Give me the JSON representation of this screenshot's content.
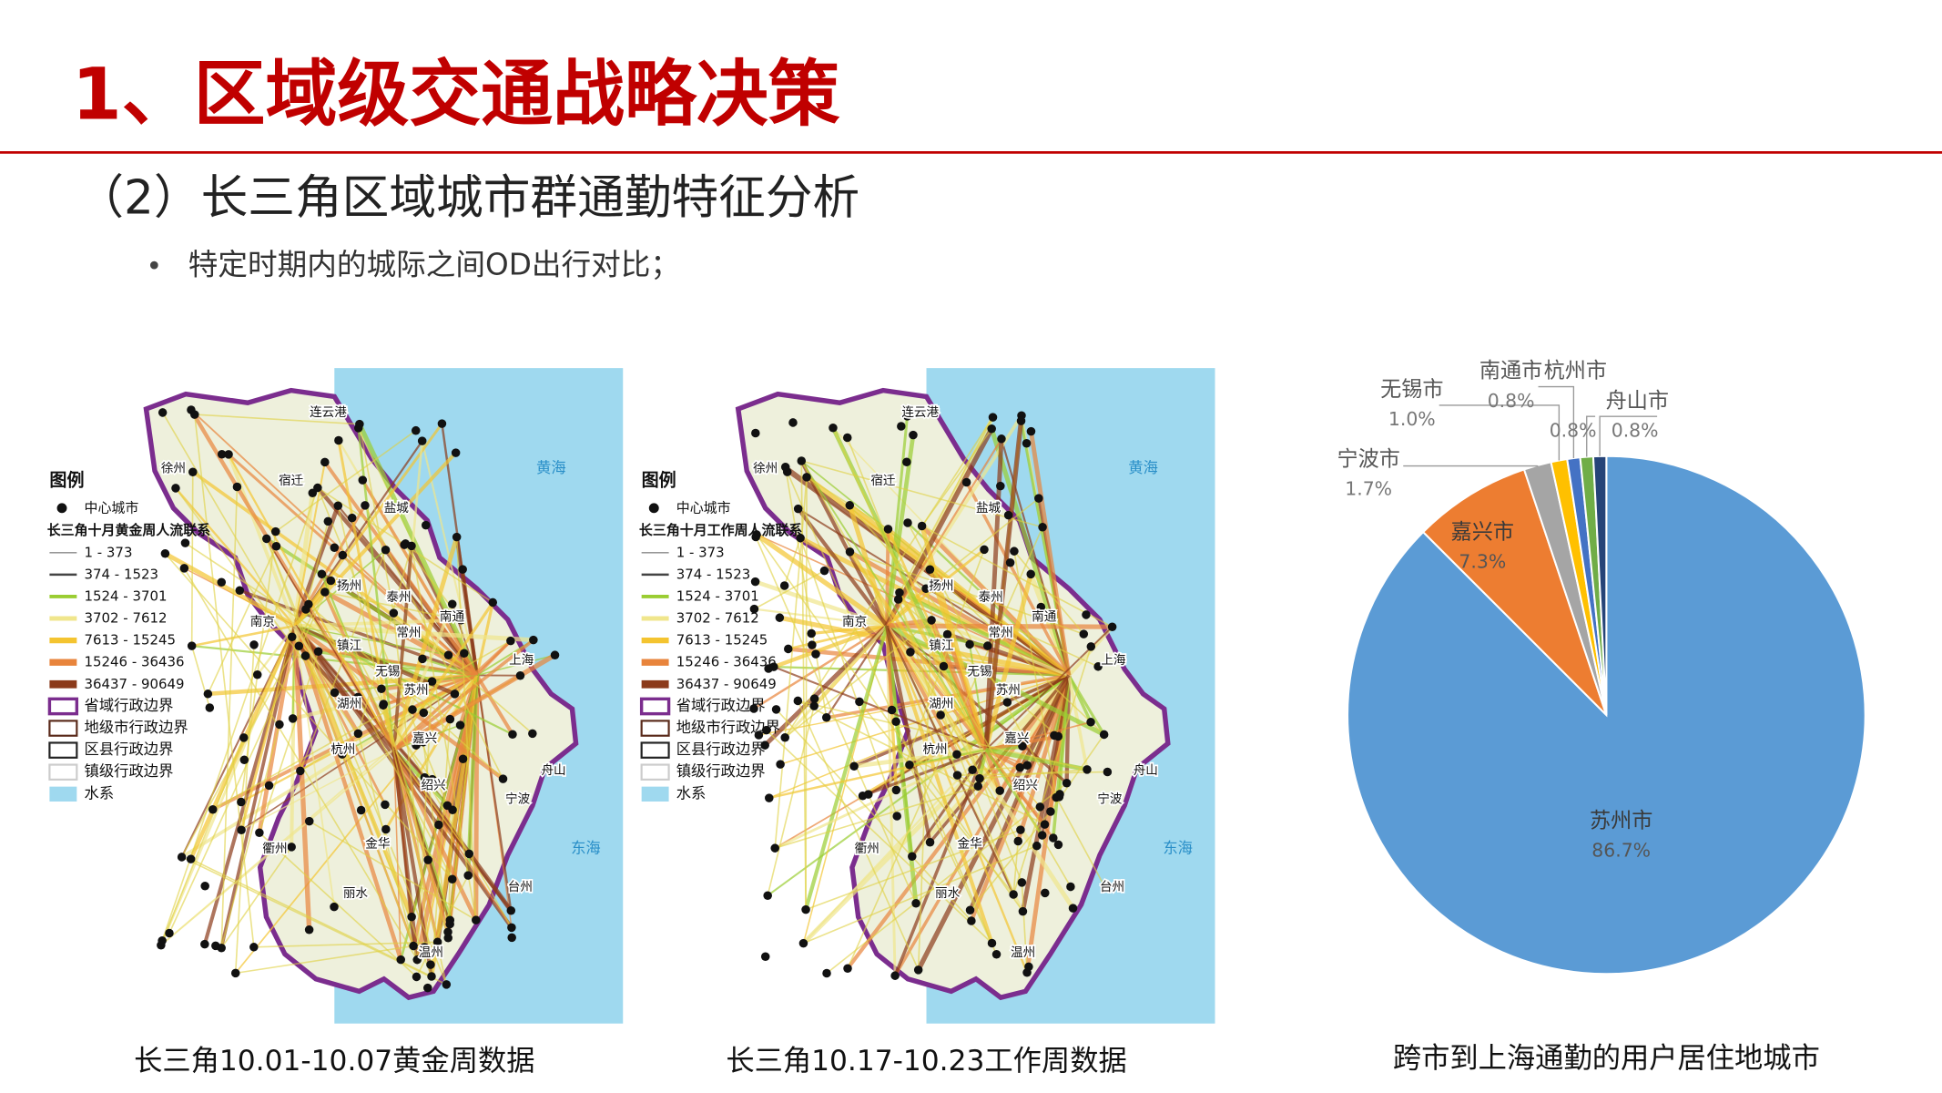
{
  "header": {
    "title": "1、区域级交通战略决策",
    "subtitle": "（2）长三角区域城市群通勤特征分析",
    "bullet": "特定时期内的城际之间OD出行对比；"
  },
  "maps": [
    {
      "legend_title": "图例",
      "center_city": "中心城市",
      "flow_title": "长三角十月黄金周人流联系",
      "flow_classes": [
        "1 - 373",
        "374 - 1523",
        "1524 - 3701",
        "3702 - 7612",
        "7613 - 15245",
        "15246 - 36436",
        "36437 - 90649"
      ],
      "boundaries": [
        "省域行政边界",
        "地级市行政边界",
        "区县行政边界",
        "镇级行政边界"
      ],
      "water": "水系",
      "places": [
        "连云港",
        "徐州",
        "宿迁",
        "盐城",
        "扬州",
        "泰州",
        "南京",
        "南通",
        "镇江",
        "常州",
        "无锡",
        "上海",
        "苏州",
        "湖州",
        "嘉兴",
        "杭州",
        "舟山",
        "绍兴",
        "宁波",
        "衢州",
        "金华",
        "丽水",
        "台州",
        "温州",
        "黄海",
        "东海"
      ],
      "caption": "长三角10.01-10.07黄金周数据"
    },
    {
      "legend_title": "图例",
      "center_city": "中心城市",
      "flow_title": "长三角十月工作周人流联系",
      "flow_classes": [
        "1 - 373",
        "374 - 1523",
        "1524 - 3701",
        "3702 - 7612",
        "7613 - 15245",
        "15246 - 36436",
        "36437 - 90649"
      ],
      "boundaries": [
        "省域行政边界",
        "地级市行政边界",
        "区县行政边界",
        "镇级行政边界"
      ],
      "water": "水系",
      "places": [
        "连云港",
        "徐州",
        "宿迁",
        "盐城",
        "扬州",
        "泰州",
        "南京",
        "南通",
        "镇江",
        "常州",
        "无锡",
        "上海",
        "苏州",
        "湖州",
        "嘉兴",
        "杭州",
        "舟山",
        "绍兴",
        "宁波",
        "衢州",
        "金华",
        "丽水",
        "台州",
        "温州",
        "黄海",
        "东海"
      ],
      "caption": "长三角10.17-10.23工作周数据"
    }
  ],
  "chart_data": {
    "type": "pie",
    "title": "跨市到上海通勤的用户居住地城市",
    "categories": [
      "苏州市",
      "嘉兴市",
      "宁波市",
      "无锡市",
      "南通市",
      "杭州市",
      "舟山市"
    ],
    "values": [
      86.7,
      7.3,
      1.7,
      1.0,
      0.8,
      0.8,
      0.8
    ],
    "value_labels": [
      "86.7%",
      "7.3%",
      "1.7%",
      "1.0%",
      "0.8%",
      "0.8%",
      "0.8%"
    ],
    "colors": [
      "#5b9bd5",
      "#ed7d31",
      "#a5a5a5",
      "#ffc000",
      "#4472c4",
      "#70ad47",
      "#264478"
    ]
  }
}
